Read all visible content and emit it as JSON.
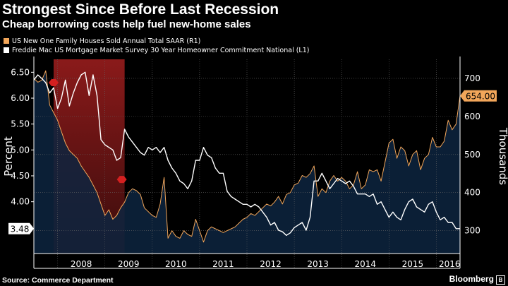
{
  "title": "Strongest Since Before Last Recession",
  "subtitle": "Cheap borrowing costs help fuel new-home sales",
  "source": "Source: Commerce Department",
  "brand": "Bloomberg",
  "colors": {
    "background": "#000000",
    "sales_fill": "#0d2440",
    "sales_line": "#f2a65a",
    "rate_line": "#ffffff",
    "recession": "#8a1a1a",
    "grid": "#666666"
  },
  "chart_data": {
    "type": "line",
    "x_categories": [
      "2008",
      "2009",
      "2010",
      "2011",
      "2012",
      "2013",
      "2014",
      "2015",
      "2016"
    ],
    "xlim": [
      "2007-07",
      "2016-07"
    ],
    "shaded_region": {
      "name": "recession",
      "start": "2007-12",
      "end": "2009-06"
    },
    "left_axis": {
      "label": "Percent",
      "ylim": [
        3.0,
        6.75
      ],
      "ticks": [
        "6.50",
        "6.00",
        "5.50",
        "5.00",
        "4.50",
        "4.00"
      ]
    },
    "right_axis": {
      "label": "Thousands",
      "ylim": [
        240,
        750
      ],
      "ticks": [
        "700",
        "600",
        "500",
        "400",
        "300"
      ]
    },
    "series": [
      {
        "name": "US New One Family Houses Sold Annual Total SAAR  (R1)",
        "axis": "right",
        "last_value_label": "654.00",
        "points": [
          [
            "2007-07",
            700
          ],
          [
            "2007-08",
            690
          ],
          [
            "2007-09",
            695
          ],
          [
            "2007-10",
            720
          ],
          [
            "2007-11",
            630
          ],
          [
            "2007-12",
            610
          ],
          [
            "2008-01",
            590
          ],
          [
            "2008-02",
            560
          ],
          [
            "2008-03",
            530
          ],
          [
            "2008-04",
            510
          ],
          [
            "2008-05",
            500
          ],
          [
            "2008-06",
            490
          ],
          [
            "2008-07",
            470
          ],
          [
            "2008-08",
            455
          ],
          [
            "2008-09",
            440
          ],
          [
            "2008-10",
            420
          ],
          [
            "2008-11",
            400
          ],
          [
            "2008-12",
            370
          ],
          [
            "2009-01",
            340
          ],
          [
            "2009-02",
            355
          ],
          [
            "2009-03",
            330
          ],
          [
            "2009-04",
            340
          ],
          [
            "2009-05",
            360
          ],
          [
            "2009-06",
            375
          ],
          [
            "2009-07",
            400
          ],
          [
            "2009-08",
            410
          ],
          [
            "2009-09",
            405
          ],
          [
            "2009-10",
            395
          ],
          [
            "2009-11",
            360
          ],
          [
            "2009-12",
            350
          ],
          [
            "2010-01",
            340
          ],
          [
            "2010-02",
            335
          ],
          [
            "2010-03",
            370
          ],
          [
            "2010-04",
            440
          ],
          [
            "2010-05",
            280
          ],
          [
            "2010-06",
            300
          ],
          [
            "2010-07",
            285
          ],
          [
            "2010-08",
            280
          ],
          [
            "2010-09",
            300
          ],
          [
            "2010-10",
            290
          ],
          [
            "2010-11",
            285
          ],
          [
            "2010-12",
            330
          ],
          [
            "2011-01",
            300
          ],
          [
            "2011-02",
            270
          ],
          [
            "2011-03",
            300
          ],
          [
            "2011-04",
            310
          ],
          [
            "2011-05",
            305
          ],
          [
            "2011-06",
            300
          ],
          [
            "2011-07",
            295
          ],
          [
            "2011-08",
            300
          ],
          [
            "2011-09",
            305
          ],
          [
            "2011-10",
            310
          ],
          [
            "2011-11",
            320
          ],
          [
            "2011-12",
            330
          ],
          [
            "2012-01",
            335
          ],
          [
            "2012-02",
            345
          ],
          [
            "2012-03",
            340
          ],
          [
            "2012-04",
            350
          ],
          [
            "2012-05",
            360
          ],
          [
            "2012-06",
            370
          ],
          [
            "2012-07",
            365
          ],
          [
            "2012-08",
            375
          ],
          [
            "2012-09",
            390
          ],
          [
            "2012-10",
            370
          ],
          [
            "2012-11",
            395
          ],
          [
            "2012-12",
            400
          ],
          [
            "2013-01",
            420
          ],
          [
            "2013-02",
            425
          ],
          [
            "2013-03",
            445
          ],
          [
            "2013-04",
            440
          ],
          [
            "2013-05",
            450
          ],
          [
            "2013-06",
            470
          ],
          [
            "2013-07",
            390
          ],
          [
            "2013-08",
            410
          ],
          [
            "2013-09",
            400
          ],
          [
            "2013-10",
            430
          ],
          [
            "2013-11",
            445
          ],
          [
            "2013-12",
            430
          ],
          [
            "2014-01",
            440
          ],
          [
            "2014-02",
            430
          ],
          [
            "2014-03",
            410
          ],
          [
            "2014-04",
            420
          ],
          [
            "2014-05",
            455
          ],
          [
            "2014-06",
            410
          ],
          [
            "2014-07",
            420
          ],
          [
            "2014-08",
            460
          ],
          [
            "2014-09",
            455
          ],
          [
            "2014-10",
            460
          ],
          [
            "2014-11",
            430
          ],
          [
            "2014-12",
            480
          ],
          [
            "2015-01",
            530
          ],
          [
            "2015-02",
            540
          ],
          [
            "2015-03",
            490
          ],
          [
            "2015-04",
            520
          ],
          [
            "2015-05",
            510
          ],
          [
            "2015-06",
            470
          ],
          [
            "2015-07",
            500
          ],
          [
            "2015-08",
            510
          ],
          [
            "2015-09",
            460
          ],
          [
            "2015-10",
            490
          ],
          [
            "2015-11",
            500
          ],
          [
            "2015-12",
            545
          ],
          [
            "2016-01",
            520
          ],
          [
            "2016-02",
            520
          ],
          [
            "2016-03",
            535
          ],
          [
            "2016-04",
            590
          ],
          [
            "2016-05",
            565
          ],
          [
            "2016-06",
            580
          ],
          [
            "2016-07",
            654
          ]
        ]
      },
      {
        "name": "Freddie Mac US Mortgage Market Survey 30 Year Homeowner Commitment National  (L1)",
        "axis": "left",
        "last_value_label": "3.48",
        "points": [
          [
            "2007-07",
            6.35
          ],
          [
            "2007-08",
            6.45
          ],
          [
            "2007-09",
            6.38
          ],
          [
            "2007-10",
            6.3
          ],
          [
            "2007-11",
            6.1
          ],
          [
            "2007-12",
            6.2
          ],
          [
            "2008-01",
            5.8
          ],
          [
            "2008-02",
            6.0
          ],
          [
            "2008-03",
            6.35
          ],
          [
            "2008-04",
            5.85
          ],
          [
            "2008-05",
            6.1
          ],
          [
            "2008-06",
            6.3
          ],
          [
            "2008-07",
            6.45
          ],
          [
            "2008-08",
            6.5
          ],
          [
            "2008-09",
            6.05
          ],
          [
            "2008-10",
            6.45
          ],
          [
            "2008-11",
            6.05
          ],
          [
            "2008-12",
            5.2
          ],
          [
            "2009-01",
            5.1
          ],
          [
            "2009-02",
            5.05
          ],
          [
            "2009-03",
            5.0
          ],
          [
            "2009-04",
            4.8
          ],
          [
            "2009-05",
            4.85
          ],
          [
            "2009-06",
            5.4
          ],
          [
            "2009-07",
            5.25
          ],
          [
            "2009-08",
            5.15
          ],
          [
            "2009-09",
            5.05
          ],
          [
            "2009-10",
            4.95
          ],
          [
            "2009-11",
            4.9
          ],
          [
            "2009-12",
            5.05
          ],
          [
            "2010-01",
            5.0
          ],
          [
            "2010-02",
            5.05
          ],
          [
            "2010-03",
            4.95
          ],
          [
            "2010-04",
            5.05
          ],
          [
            "2010-05",
            4.8
          ],
          [
            "2010-06",
            4.65
          ],
          [
            "2010-07",
            4.55
          ],
          [
            "2010-08",
            4.4
          ],
          [
            "2010-09",
            4.35
          ],
          [
            "2010-10",
            4.25
          ],
          [
            "2010-11",
            4.4
          ],
          [
            "2010-12",
            4.8
          ],
          [
            "2011-01",
            4.8
          ],
          [
            "2011-02",
            5.05
          ],
          [
            "2011-03",
            4.9
          ],
          [
            "2011-04",
            4.85
          ],
          [
            "2011-05",
            4.65
          ],
          [
            "2011-06",
            4.55
          ],
          [
            "2011-07",
            4.55
          ],
          [
            "2011-08",
            4.2
          ],
          [
            "2011-09",
            4.1
          ],
          [
            "2011-10",
            4.05
          ],
          [
            "2011-11",
            4.0
          ],
          [
            "2011-12",
            3.95
          ],
          [
            "2012-01",
            3.95
          ],
          [
            "2012-02",
            3.9
          ],
          [
            "2012-03",
            3.95
          ],
          [
            "2012-04",
            3.9
          ],
          [
            "2012-05",
            3.8
          ],
          [
            "2012-06",
            3.7
          ],
          [
            "2012-07",
            3.55
          ],
          [
            "2012-08",
            3.6
          ],
          [
            "2012-09",
            3.45
          ],
          [
            "2012-10",
            3.42
          ],
          [
            "2012-11",
            3.35
          ],
          [
            "2012-12",
            3.4
          ],
          [
            "2013-01",
            3.5
          ],
          [
            "2013-02",
            3.55
          ],
          [
            "2013-03",
            3.6
          ],
          [
            "2013-04",
            3.45
          ],
          [
            "2013-05",
            3.7
          ],
          [
            "2013-06",
            4.4
          ],
          [
            "2013-07",
            4.4
          ],
          [
            "2013-08",
            4.55
          ],
          [
            "2013-09",
            4.4
          ],
          [
            "2013-10",
            4.25
          ],
          [
            "2013-11",
            4.35
          ],
          [
            "2013-12",
            4.45
          ],
          [
            "2014-01",
            4.4
          ],
          [
            "2014-02",
            4.35
          ],
          [
            "2014-03",
            4.4
          ],
          [
            "2014-04",
            4.3
          ],
          [
            "2014-05",
            4.15
          ],
          [
            "2014-06",
            4.15
          ],
          [
            "2014-07",
            4.15
          ],
          [
            "2014-08",
            4.1
          ],
          [
            "2014-09",
            4.15
          ],
          [
            "2014-10",
            3.95
          ],
          [
            "2014-11",
            4.0
          ],
          [
            "2014-12",
            3.85
          ],
          [
            "2015-01",
            3.7
          ],
          [
            "2015-02",
            3.8
          ],
          [
            "2015-03",
            3.7
          ],
          [
            "2015-04",
            3.65
          ],
          [
            "2015-05",
            3.85
          ],
          [
            "2015-06",
            4.0
          ],
          [
            "2015-07",
            4.05
          ],
          [
            "2015-08",
            3.9
          ],
          [
            "2015-09",
            3.85
          ],
          [
            "2015-10",
            3.8
          ],
          [
            "2015-11",
            3.95
          ],
          [
            "2015-12",
            4.0
          ],
          [
            "2016-01",
            3.8
          ],
          [
            "2016-02",
            3.65
          ],
          [
            "2016-03",
            3.7
          ],
          [
            "2016-04",
            3.6
          ],
          [
            "2016-05",
            3.6
          ],
          [
            "2016-06",
            3.48
          ],
          [
            "2016-07",
            3.48
          ]
        ]
      }
    ]
  }
}
